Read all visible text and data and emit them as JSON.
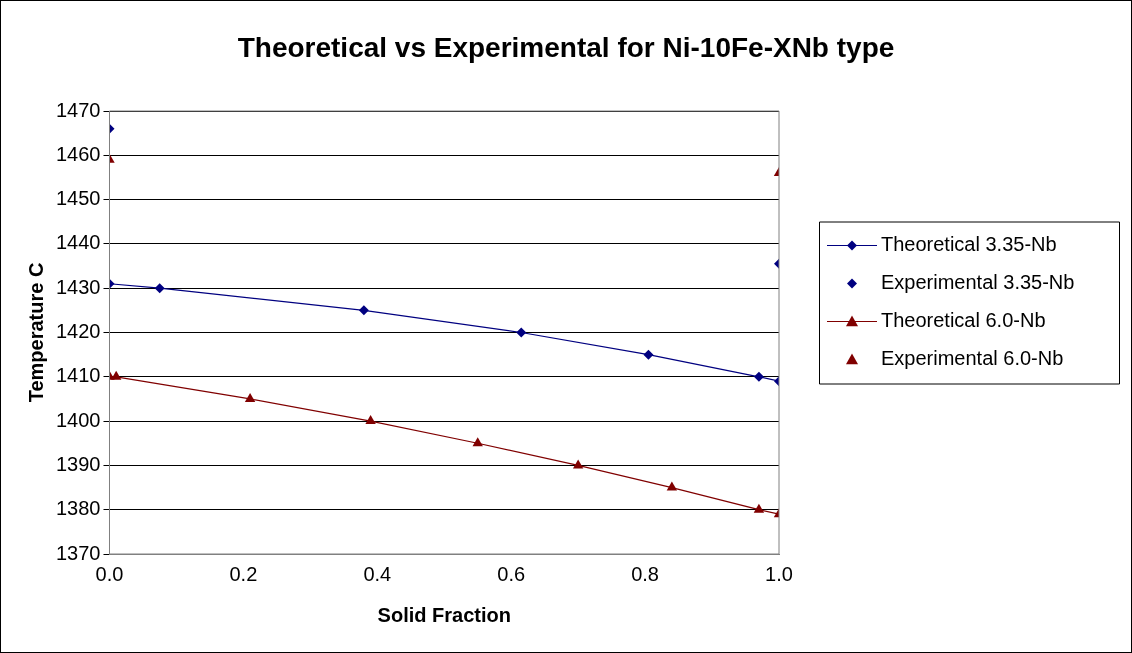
{
  "chart_data": {
    "type": "line",
    "title": "Theoretical vs Experimental for Ni-10Fe-XNb type",
    "xlabel": "Solid Fraction",
    "ylabel": "Temperature C",
    "xlim": [
      0,
      1
    ],
    "xticks": [
      {
        "value": 0,
        "label": "0.0"
      },
      {
        "value": 0.2,
        "label": "0.2"
      },
      {
        "value": 0.4,
        "label": "0.4"
      },
      {
        "value": 0.6,
        "label": "0.6"
      },
      {
        "value": 0.8,
        "label": "0.8"
      },
      {
        "value": 1,
        "label": "1.0"
      }
    ],
    "ylim": [
      1370,
      1470
    ],
    "yticks": [
      1370,
      1380,
      1390,
      1400,
      1410,
      1420,
      1430,
      1440,
      1450,
      1460,
      1470
    ],
    "grid": "y",
    "legend": "right",
    "series": [
      {
        "name": "Theoretical 3.35-Nb",
        "type": "line",
        "marker": "diamond",
        "color": "#000080",
        "x": [
          0,
          0.075,
          0.38,
          0.615,
          0.805,
          0.97,
          1.0
        ],
        "values": [
          1431,
          1430,
          1425,
          1420,
          1415,
          1410,
          1409
        ]
      },
      {
        "name": "Experimental 3.35-Nb",
        "type": "scatter",
        "marker": "diamond",
        "color": "#000080",
        "x": [
          0,
          1.0
        ],
        "values": [
          1466,
          1435.5
        ]
      },
      {
        "name": "Theoretical 6.0-Nb",
        "type": "line",
        "marker": "triangle",
        "color": "#800000",
        "x": [
          0,
          0.01,
          0.21,
          0.39,
          0.55,
          0.7,
          0.84,
          0.97,
          1.0
        ],
        "values": [
          1410,
          1410,
          1405,
          1400,
          1395,
          1390,
          1385,
          1380,
          1379
        ]
      },
      {
        "name": "Experimental 6.0-Nb",
        "type": "scatter",
        "marker": "triangle",
        "color": "#800000",
        "x": [
          0,
          1.0
        ],
        "values": [
          1459,
          1456
        ]
      }
    ]
  }
}
